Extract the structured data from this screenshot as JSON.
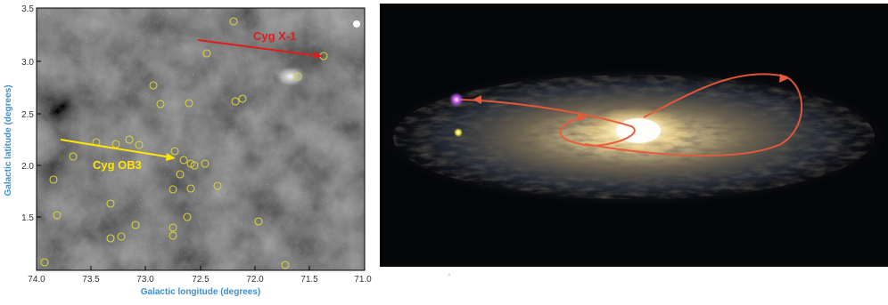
{
  "figure_left": {
    "x_axis": {
      "label": "Galactic longitude (degrees)",
      "ticks": [
        "74.0",
        "73.5",
        "73.0",
        "72.5",
        "72.0",
        "71.5",
        "71.0"
      ],
      "range": [
        74.0,
        71.0
      ]
    },
    "y_axis": {
      "label": "Galactic latitude (degrees)",
      "ticks": [
        "1.5",
        "2.0",
        "2.5",
        "3.0",
        "3.5"
      ],
      "range": [
        1.0,
        3.5
      ]
    },
    "annotations": [
      {
        "text": "Cyg X-1",
        "color": "#e21b1b"
      },
      {
        "text": "Cyg OB3",
        "color": "#ffe600"
      }
    ],
    "colors": {
      "axis_label": "#3a8fd6",
      "circle": "#d8d23a",
      "sky": "#121212"
    }
  },
  "figure_right": {
    "description_colors": {
      "orbit": "#e85a3a",
      "star_violet": "#c65cff",
      "star_yellow": "#f2e640"
    }
  },
  "footer": {
    "text": "°"
  }
}
